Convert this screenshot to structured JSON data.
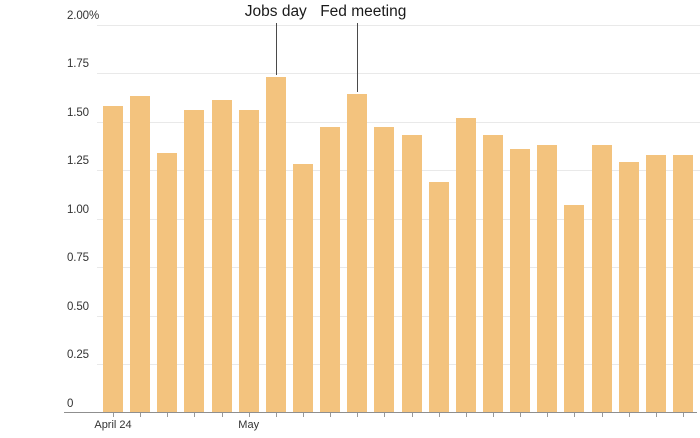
{
  "chart_data": {
    "type": "bar",
    "title": "",
    "unit": "%",
    "values": [
      1.58,
      1.63,
      1.34,
      1.56,
      1.61,
      1.56,
      1.73,
      1.28,
      1.47,
      1.64,
      1.47,
      1.43,
      1.19,
      1.52,
      1.43,
      1.36,
      1.38,
      1.07,
      1.38,
      1.29,
      1.33,
      1.33
    ],
    "ylim": [
      0,
      2.0
    ],
    "y_tick_values": [
      0,
      0.25,
      0.5,
      0.75,
      1.0,
      1.25,
      1.5,
      1.75,
      2.0
    ],
    "y_tick_labels": [
      "0",
      "0.25",
      "0.50",
      "0.75",
      "1.00",
      "1.25",
      "1.50",
      "1.75",
      "2.00%"
    ],
    "x_tick_labels": [
      {
        "bar_index": 0,
        "label": "April 24"
      },
      {
        "bar_index": 5,
        "label": "May"
      }
    ],
    "annotations": [
      {
        "label": "Jobs day",
        "bar_index": 6
      },
      {
        "label": "Fed meeting",
        "bar_index": 9
      }
    ],
    "grid": true,
    "legend": false,
    "bar_color": "#f3c37e",
    "gridline_color": "#e9e9e9",
    "axis_line_color": "#8f8f8f",
    "tick_color": "#999999",
    "text_color": "#333333",
    "annotation_text_color": "#1a1a1a",
    "annotation_line_color": "#4a4a4a"
  }
}
